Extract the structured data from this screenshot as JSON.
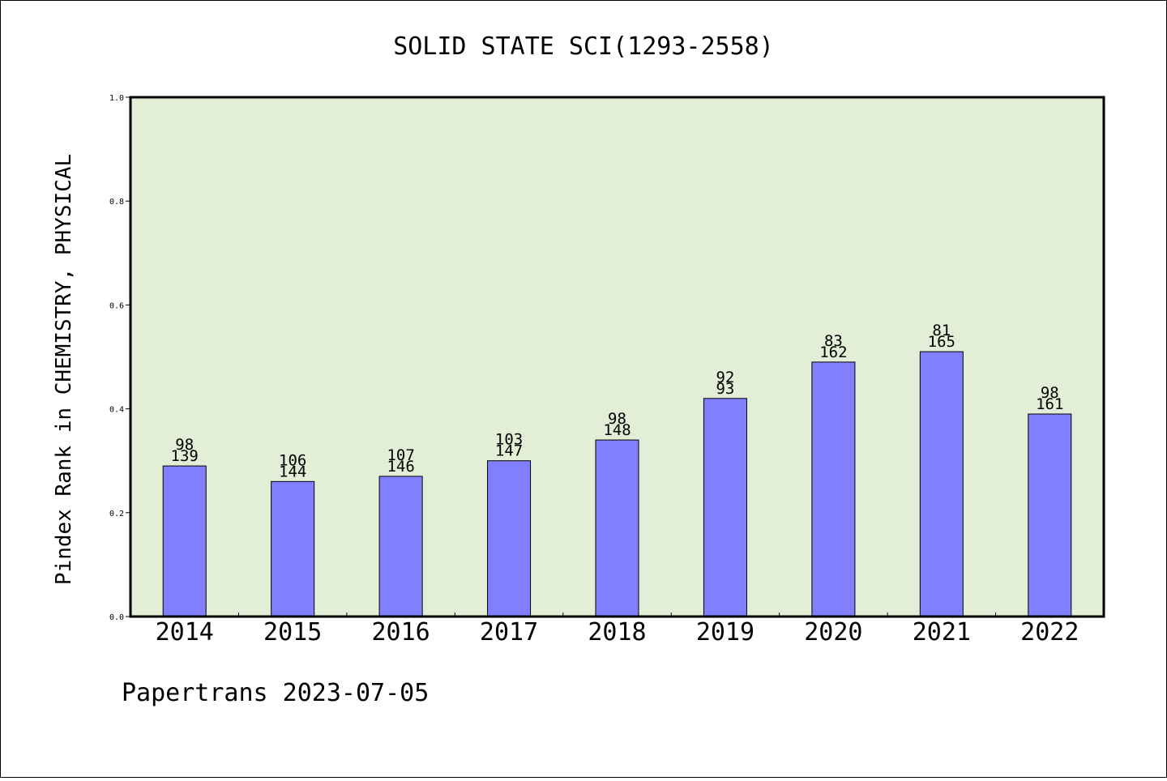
{
  "chart_data": {
    "type": "bar",
    "title": "SOLID STATE SCI(1293-2558)",
    "xlabel": "",
    "ylabel": "Pindex Rank in CHEMISTRY, PHYSICAL",
    "categories": [
      "2014",
      "2015",
      "2016",
      "2017",
      "2018",
      "2019",
      "2020",
      "2021",
      "2022"
    ],
    "values": [
      0.29,
      0.26,
      0.27,
      0.3,
      0.34,
      0.42,
      0.49,
      0.51,
      0.39
    ],
    "labels_top": [
      "98",
      "106",
      "107",
      "103",
      "98",
      "92",
      "83",
      "81",
      "98"
    ],
    "labels_bottom": [
      "139",
      "144",
      "146",
      "147",
      "148",
      "93",
      "162",
      "165",
      "161"
    ],
    "ylim": [
      0,
      1.0
    ],
    "yticks": [
      "0.0",
      "0.2",
      "0.4",
      "0.6",
      "0.8",
      "1.0"
    ],
    "grid": false,
    "colors": {
      "bar": "#8080ff",
      "plot_bg": "#e2efd6",
      "frame": "#000000"
    }
  },
  "footer": "Papertrans 2023-07-05"
}
